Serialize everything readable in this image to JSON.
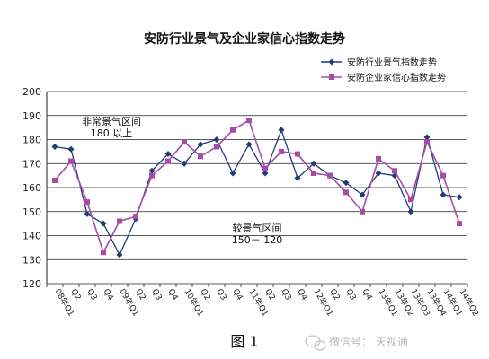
{
  "chart_data": {
    "type": "line",
    "title": "安防行业景气及企业家信心指数走势",
    "categories": [
      "08年Q1",
      "Q2",
      "Q3",
      "Q4",
      "09年Q1",
      "Q2",
      "Q3",
      "Q4",
      "10年Q1",
      "Q2",
      "Q3",
      "Q4",
      "11年Q1",
      "Q2",
      "Q3",
      "Q4",
      "12年Q1",
      "Q2",
      "Q3",
      "Q4",
      "13年Q1",
      "13年Q2",
      "13年Q3",
      "13年Q4",
      "14年Q1",
      "14年Q2"
    ],
    "ylim": [
      120,
      200
    ],
    "yticks": [
      120,
      130,
      140,
      150,
      160,
      170,
      180,
      190,
      200
    ],
    "grid": true,
    "legend_position": "top-right",
    "series": [
      {
        "name": "安防行业景气指数走势",
        "color": "#1f3d7a",
        "marker": "diamond",
        "values": [
          177,
          176,
          149,
          145,
          132,
          147,
          167,
          174,
          170,
          178,
          180,
          166,
          178,
          166,
          184,
          164,
          170,
          165,
          162,
          157,
          166,
          165,
          150,
          181,
          157,
          156
        ]
      },
      {
        "name": "安防企业家信心指数走势",
        "color": "#a64ca6",
        "marker": "square",
        "values": [
          163,
          171,
          154,
          133,
          146,
          148,
          165,
          171,
          179,
          173,
          177,
          184,
          188,
          168,
          175,
          174,
          166,
          165,
          158,
          150,
          172,
          167,
          155,
          179,
          165,
          145
        ]
      }
    ],
    "annotations": {
      "high_zone_line1": "非常景气区间",
      "high_zone_line2": "180 以上",
      "mid_zone_line1": "较景气区间",
      "mid_zone_line2": "150－ 120"
    },
    "caption": "图 1",
    "watermark": "微信号：       天视通"
  }
}
